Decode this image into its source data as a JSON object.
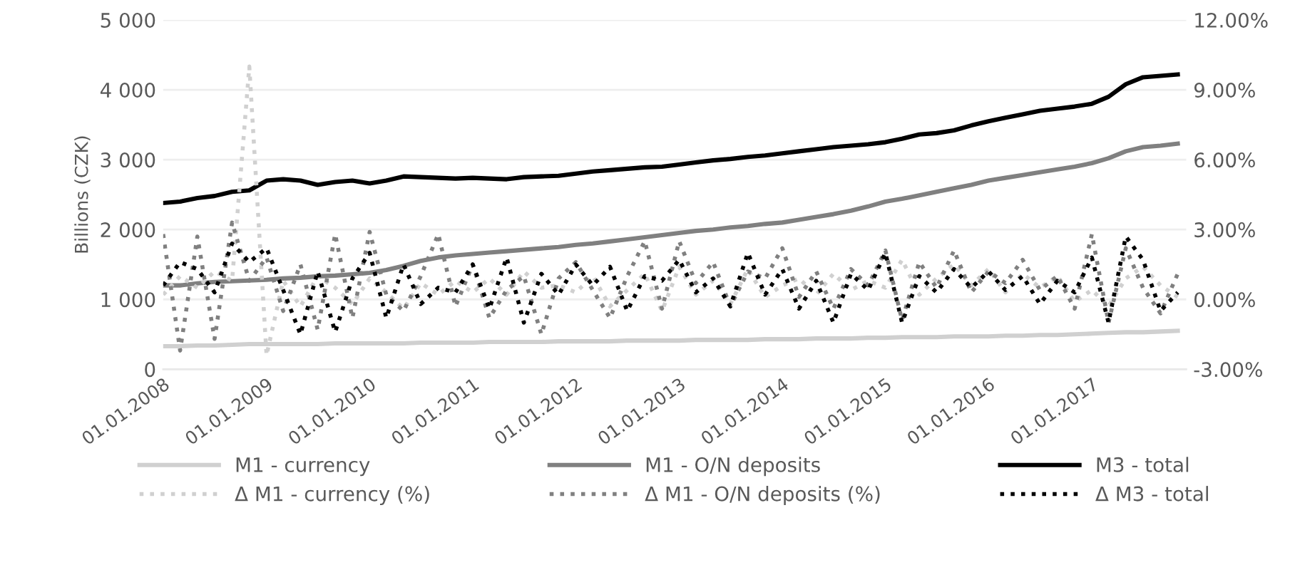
{
  "chart_data": {
    "type": "line",
    "ylabel": "Billions (CZK)",
    "x": [
      "2008-01",
      "2008-03",
      "2008-05",
      "2008-07",
      "2008-09",
      "2008-11",
      "2009-01",
      "2009-03",
      "2009-05",
      "2009-07",
      "2009-09",
      "2009-11",
      "2010-01",
      "2010-03",
      "2010-05",
      "2010-07",
      "2010-09",
      "2010-11",
      "2011-01",
      "2011-03",
      "2011-05",
      "2011-07",
      "2011-09",
      "2011-11",
      "2012-01",
      "2012-03",
      "2012-05",
      "2012-07",
      "2012-09",
      "2012-11",
      "2013-01",
      "2013-03",
      "2013-05",
      "2013-07",
      "2013-09",
      "2013-11",
      "2014-01",
      "2014-03",
      "2014-05",
      "2014-07",
      "2014-09",
      "2014-11",
      "2015-01",
      "2015-03",
      "2015-05",
      "2015-07",
      "2015-09",
      "2015-11",
      "2016-01",
      "2016-03",
      "2016-05",
      "2016-07",
      "2016-09",
      "2016-11",
      "2017-01",
      "2017-03",
      "2017-05",
      "2017-07",
      "2017-09",
      "2017-11"
    ],
    "series": [
      {
        "name": "M1 - currency",
        "color": "#d0d0d0",
        "line_style": "solid",
        "values": [
          330,
          330,
          340,
          340,
          350,
          360,
          360,
          360,
          360,
          360,
          370,
          370,
          370,
          370,
          370,
          380,
          380,
          380,
          380,
          390,
          390,
          390,
          390,
          400,
          400,
          400,
          400,
          410,
          410,
          410,
          410,
          420,
          420,
          420,
          420,
          430,
          430,
          430,
          440,
          440,
          440,
          450,
          450,
          460,
          460,
          460,
          470,
          470,
          470,
          480,
          480,
          490,
          490,
          500,
          510,
          520,
          530,
          530,
          540,
          550
        ]
      },
      {
        "name": "M1 - O/N deposits",
        "color": "#808080",
        "line_style": "solid",
        "values": [
          1200,
          1200,
          1230,
          1250,
          1260,
          1270,
          1280,
          1300,
          1310,
          1330,
          1340,
          1360,
          1380,
          1420,
          1480,
          1550,
          1600,
          1630,
          1650,
          1670,
          1690,
          1710,
          1730,
          1750,
          1780,
          1800,
          1830,
          1860,
          1890,
          1920,
          1950,
          1980,
          2000,
          2030,
          2050,
          2080,
          2100,
          2140,
          2180,
          2220,
          2270,
          2330,
          2400,
          2440,
          2490,
          2540,
          2590,
          2640,
          2700,
          2740,
          2780,
          2820,
          2860,
          2900,
          2950,
          3020,
          3120,
          3180,
          3200,
          3230
        ]
      },
      {
        "name": "M3 - total",
        "color": "#000000",
        "line_style": "solid",
        "values": [
          2380,
          2400,
          2450,
          2480,
          2540,
          2560,
          2700,
          2720,
          2700,
          2640,
          2680,
          2700,
          2660,
          2700,
          2760,
          2750,
          2740,
          2730,
          2740,
          2730,
          2720,
          2750,
          2760,
          2770,
          2800,
          2830,
          2850,
          2870,
          2890,
          2900,
          2930,
          2960,
          2990,
          3010,
          3040,
          3060,
          3090,
          3120,
          3150,
          3180,
          3200,
          3220,
          3250,
          3300,
          3360,
          3380,
          3420,
          3490,
          3550,
          3600,
          3650,
          3700,
          3730,
          3760,
          3800,
          3900,
          4080,
          4180,
          4200,
          4220
        ]
      },
      {
        "name": "Δ M1 - currency (%)",
        "color": "#d0d0d0",
        "line_style": "dotted",
        "axis": "y2",
        "values": [
          0.2,
          1.0,
          0.5,
          1.2,
          0.8,
          10.0,
          -2.4,
          0.8,
          -0.3,
          1.0,
          0.5,
          -0.2,
          0.9,
          0.3,
          -0.4,
          0.7,
          0.2,
          0.8,
          0.3,
          0.9,
          0.2,
          1.2,
          0.5,
          0.6,
          0.3,
          1.0,
          -0.3,
          0.4,
          1.1,
          -0.5,
          1.4,
          0.2,
          0.8,
          -0.2,
          1.3,
          0.1,
          0.6,
          0.9,
          0.2,
          1.1,
          0.4,
          0.8,
          0.5,
          1.7,
          0.2,
          0.9,
          1.5,
          0.6,
          1.3,
          0.3,
          1.1,
          0.5,
          1.0,
          -0.1,
          0.4,
          -0.3,
          0.9,
          1.4,
          0.6,
          0.1
        ]
      },
      {
        "name": "Δ M1 - O/N deposits (%)",
        "color": "#808080",
        "line_style": "dotted",
        "axis": "y2",
        "values": [
          2.8,
          -2.2,
          2.7,
          -1.7,
          3.3,
          0.8,
          1.8,
          -0.5,
          1.5,
          -1.3,
          2.8,
          -0.8,
          2.9,
          0.2,
          -0.5,
          1.0,
          2.8,
          -0.3,
          1.5,
          -0.8,
          0.4,
          1.0,
          -1.5,
          0.9,
          1.6,
          0.4,
          -0.8,
          1.0,
          2.5,
          -0.4,
          2.5,
          0.7,
          1.6,
          -0.3,
          1.2,
          0.9,
          2.2,
          0.1,
          1.2,
          -0.4,
          1.3,
          0.6,
          2.1,
          -0.9,
          1.6,
          0.5,
          2.1,
          0.3,
          1.2,
          0.7,
          1.7,
          0.4,
          1.0,
          -0.4,
          2.8,
          -1.0,
          2.2,
          0.5,
          -0.6,
          1.1
        ]
      },
      {
        "name": "Δ M3 - total",
        "color": "#000000",
        "line_style": "dotted",
        "axis": "y2",
        "values": [
          0.6,
          1.6,
          1.3,
          0.3,
          2.4,
          1.6,
          2.2,
          0.4,
          -1.5,
          1.2,
          -1.4,
          0.9,
          2.0,
          -0.8,
          1.5,
          -0.2,
          0.5,
          0.3,
          1.5,
          -0.4,
          1.8,
          -1.0,
          1.1,
          0.2,
          1.5,
          0.6,
          1.4,
          -0.5,
          1.0,
          0.8,
          1.7,
          0.3,
          0.9,
          -0.3,
          2.0,
          0.2,
          1.3,
          -0.4,
          0.8,
          -1.0,
          1.1,
          0.4,
          2.0,
          -1.0,
          1.0,
          0.3,
          1.3,
          0.5,
          1.2,
          0.4,
          1.0,
          -0.2,
          0.8,
          0.3,
          1.8,
          -1.0,
          2.7,
          1.7,
          -0.5,
          0.3
        ]
      }
    ],
    "xlim": [
      "2008-01-01",
      "2017-12-01"
    ],
    "xticks": [
      {
        "value": "2008-01-01",
        "label": "01.01.2008"
      },
      {
        "value": "2009-01-01",
        "label": "01.01.2009"
      },
      {
        "value": "2010-01-01",
        "label": "01.01.2010"
      },
      {
        "value": "2011-01-01",
        "label": "01.01.2011"
      },
      {
        "value": "2012-01-01",
        "label": "01.01.2012"
      },
      {
        "value": "2013-01-01",
        "label": "01.01.2013"
      },
      {
        "value": "2014-01-01",
        "label": "01.01.2014"
      },
      {
        "value": "2015-01-01",
        "label": "01.01.2015"
      },
      {
        "value": "2016-01-01",
        "label": "01.01.2016"
      },
      {
        "value": "2017-01-01",
        "label": "01.01.2017"
      }
    ],
    "ylim": [
      0,
      5000
    ],
    "yticks": [
      0,
      {
        "value": 1000,
        "label": "1 000"
      },
      {
        "value": 2000,
        "label": "2 000"
      },
      {
        "value": 3000,
        "label": "3 000"
      },
      {
        "value": 4000,
        "label": "4 000"
      },
      {
        "value": 5000,
        "label": "5 000"
      }
    ],
    "y2lim": [
      -3,
      12
    ],
    "y2ticks": [
      {
        "value": -3,
        "label": "-3.00%"
      },
      {
        "value": 0,
        "label": "0.00%"
      },
      {
        "value": 3,
        "label": "3.00%"
      },
      {
        "value": 6,
        "label": "6.00%"
      },
      {
        "value": 9,
        "label": "9.00%"
      },
      {
        "value": 12,
        "label": "12.00%"
      }
    ],
    "grid": "y",
    "legend": "bottom",
    "marker": "none"
  }
}
